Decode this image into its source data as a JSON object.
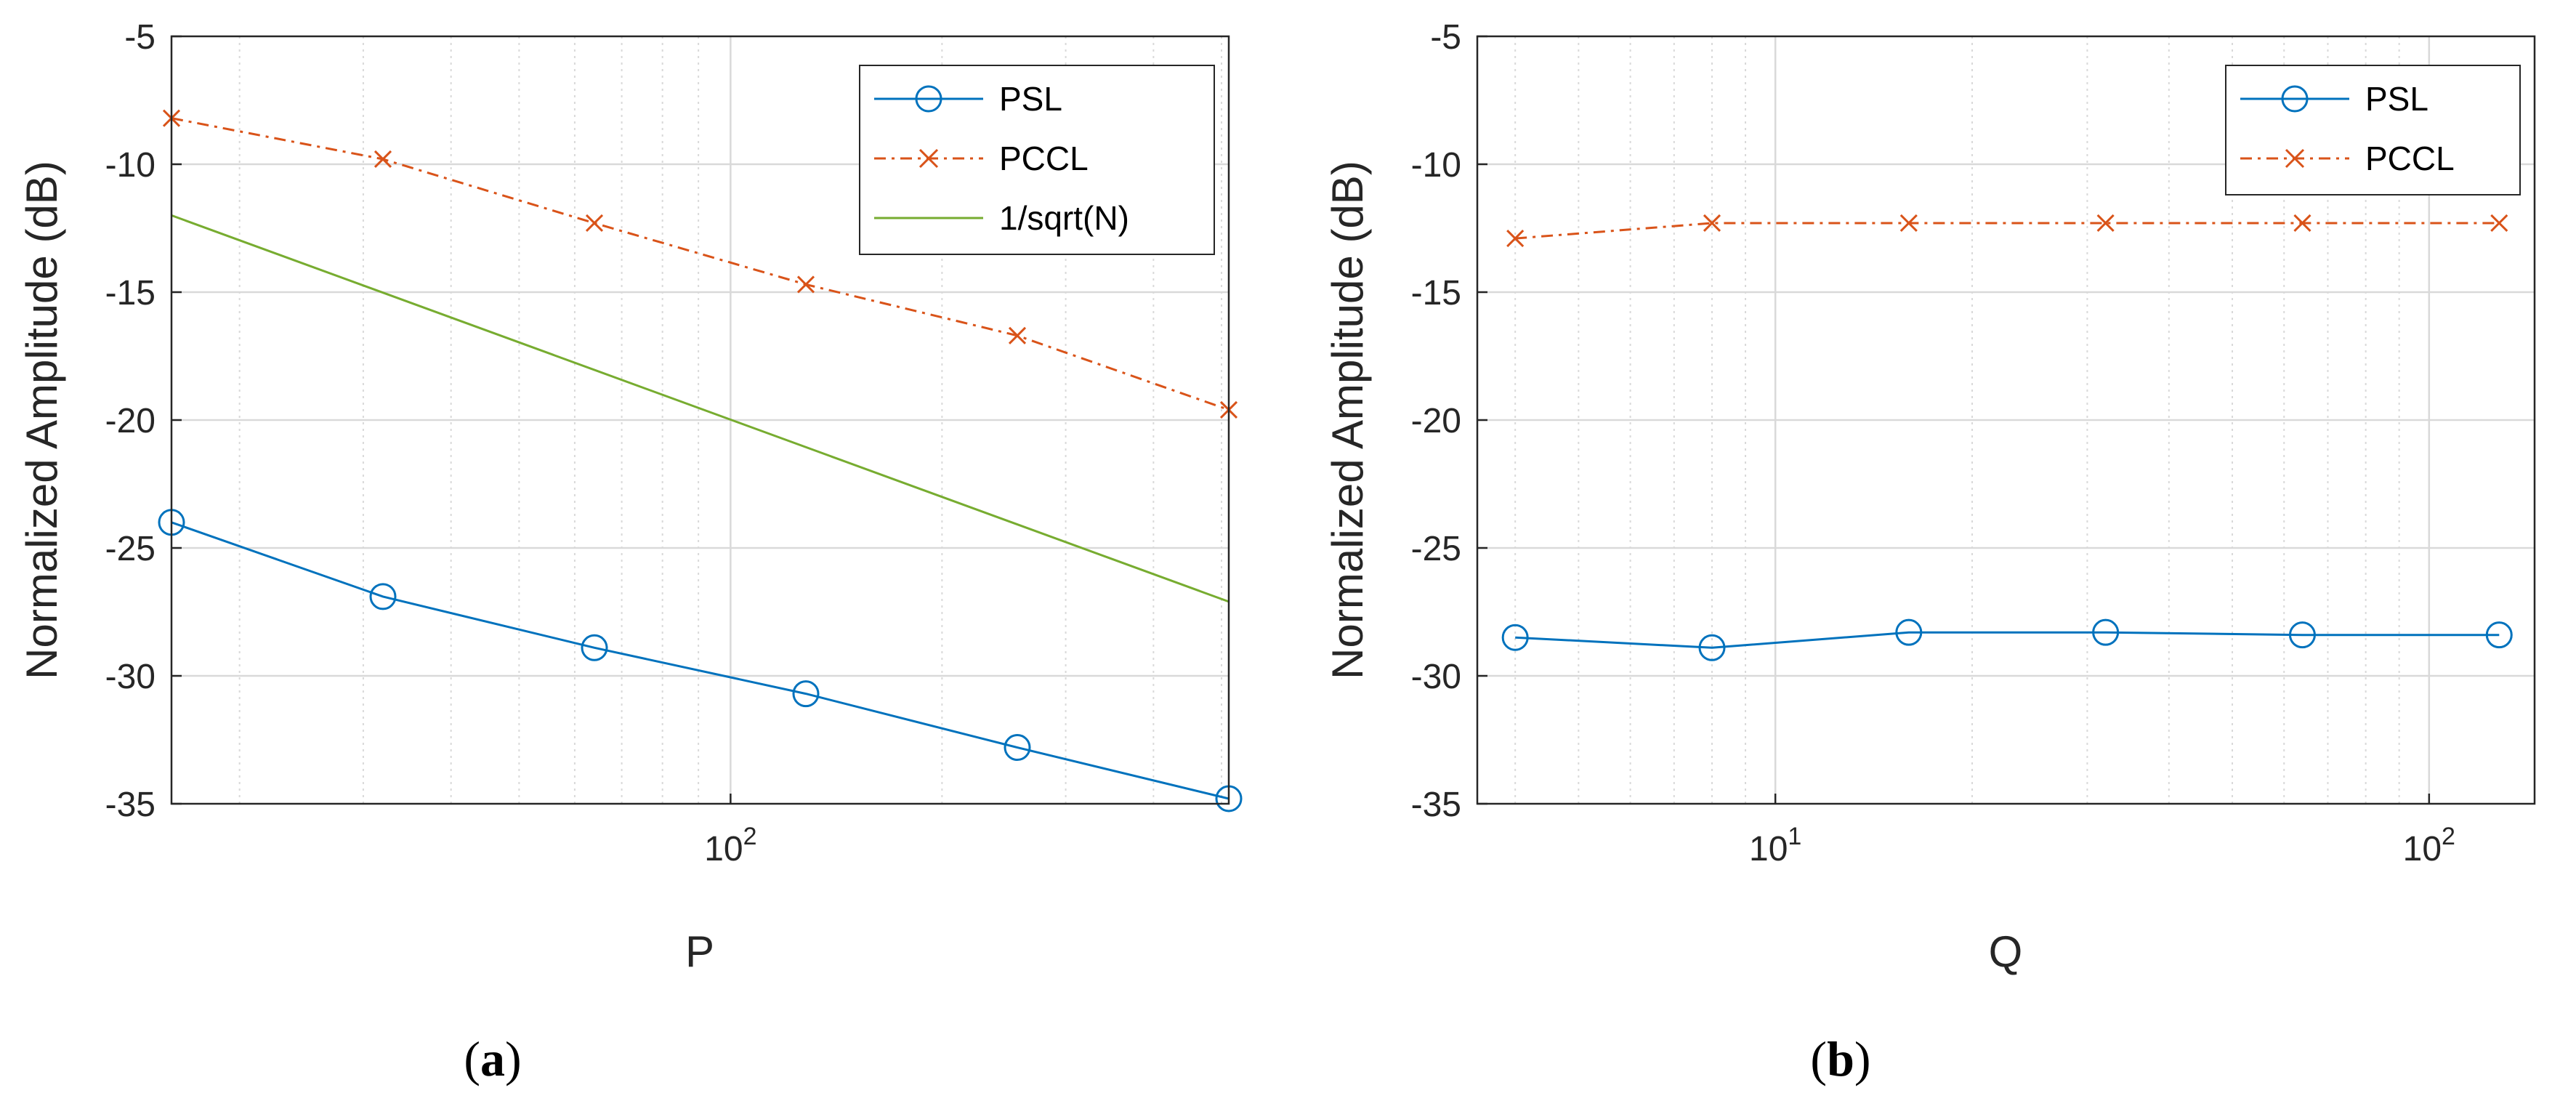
{
  "colors": {
    "psl": "#0072BD",
    "pccl": "#D95319",
    "ref": "#77AC30",
    "grid": "#d9d9d9",
    "axis": "#262626"
  },
  "chart_data": [
    {
      "type": "line",
      "xscale": "log",
      "xlabel": "P",
      "ylabel": "Normalized Amplitude (dB)",
      "caption_open": "(",
      "caption_letter": "a",
      "caption_close": ")",
      "xlim": [
        16,
        512
      ],
      "ylim": [
        -35,
        -5
      ],
      "yticks": [
        -5,
        -10,
        -15,
        -20,
        -25,
        -30,
        -35
      ],
      "ytick_labels": [
        "-5",
        "-10",
        "-15",
        "-20",
        "-25",
        "-30",
        "-35"
      ],
      "xticks": [
        {
          "value": 100,
          "base": "10",
          "exp": "2"
        }
      ],
      "legend_position": "top-right",
      "series": [
        {
          "name": "PSL",
          "style": "solid-circle",
          "x": [
            16,
            32,
            64,
            128,
            256,
            512
          ],
          "values": [
            -24.0,
            -26.9,
            -28.9,
            -30.7,
            -32.8,
            -34.8
          ]
        },
        {
          "name": "PCCL",
          "style": "dashdot-x",
          "x": [
            16,
            32,
            64,
            128,
            256,
            512
          ],
          "values": [
            -8.2,
            -9.8,
            -12.3,
            -14.7,
            -16.7,
            -19.6
          ]
        },
        {
          "name": "1/sqrt(N)",
          "style": "solid",
          "x": [
            16,
            512
          ],
          "values": [
            -12.0,
            -27.1
          ]
        }
      ]
    },
    {
      "type": "line",
      "xscale": "log",
      "xlabel": "Q",
      "ylabel": "Normalized Amplitude (dB)",
      "caption_open": "(",
      "caption_letter": "b",
      "caption_close": ")",
      "xlim": [
        3.5,
        145
      ],
      "ylim": [
        -35,
        -5
      ],
      "yticks": [
        -5,
        -10,
        -15,
        -20,
        -25,
        -30,
        -35
      ],
      "ytick_labels": [
        "-5",
        "-10",
        "-15",
        "-20",
        "-25",
        "-30",
        "-35"
      ],
      "xticks": [
        {
          "value": 10,
          "base": "10",
          "exp": "1"
        },
        {
          "value": 100,
          "base": "10",
          "exp": "2"
        }
      ],
      "legend_position": "top-right",
      "series": [
        {
          "name": "PSL",
          "style": "solid-circle",
          "x": [
            4,
            8,
            16,
            32,
            64,
            128
          ],
          "values": [
            -28.5,
            -28.9,
            -28.3,
            -28.3,
            -28.4,
            -28.4
          ]
        },
        {
          "name": "PCCL",
          "style": "dashdot-x",
          "x": [
            4,
            8,
            16,
            32,
            64,
            128
          ],
          "values": [
            -12.9,
            -12.3,
            -12.3,
            -12.3,
            -12.3,
            -12.3
          ]
        }
      ]
    }
  ]
}
